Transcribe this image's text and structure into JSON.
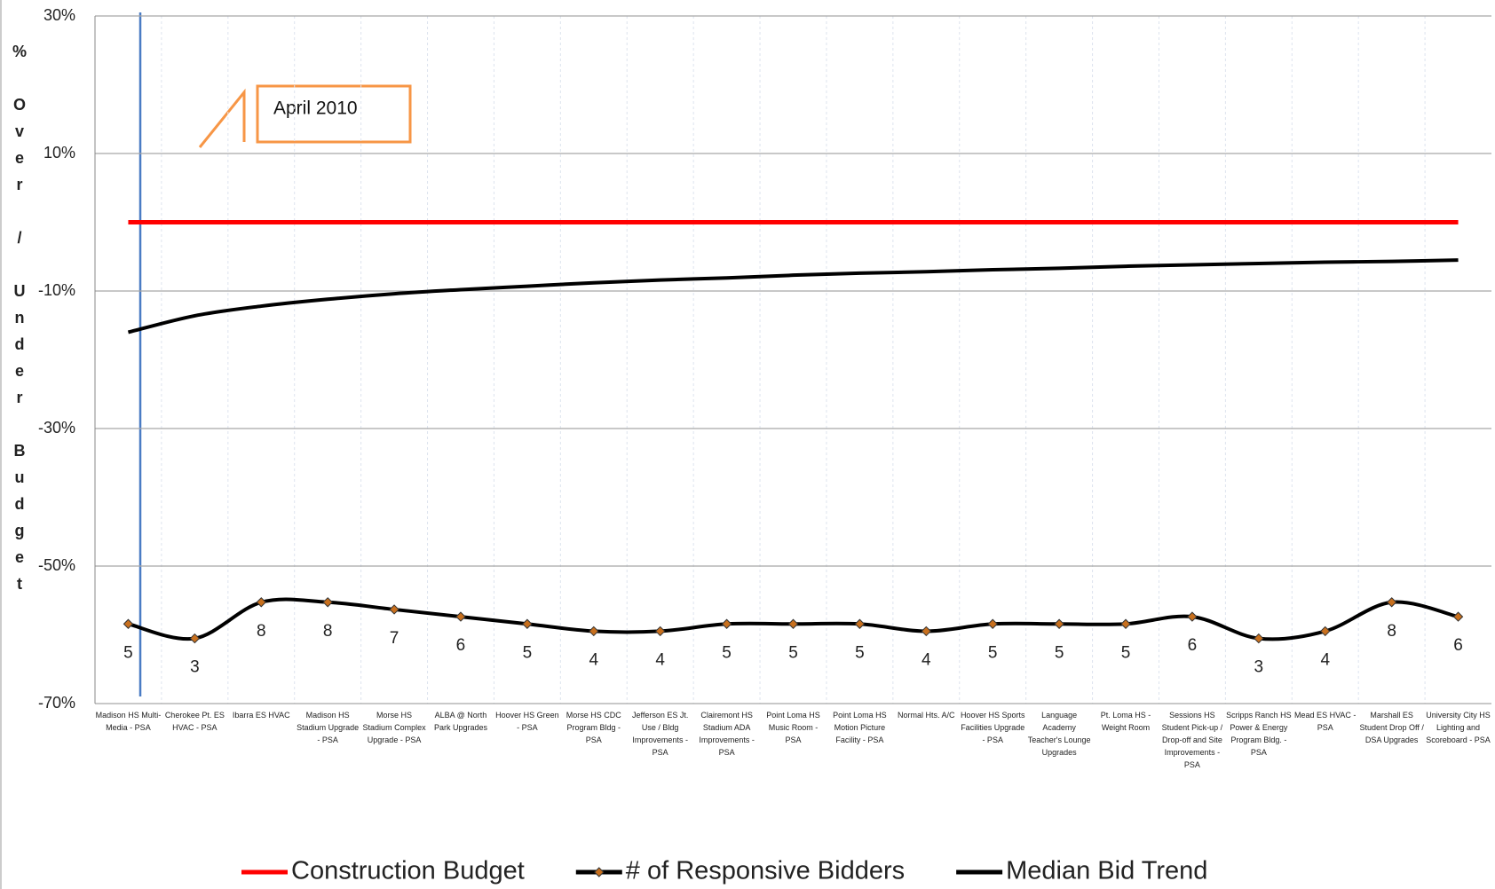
{
  "chart_data": {
    "type": "line",
    "y_label": "% Over / Under Budget",
    "annotation": "April 2010",
    "categories": [
      "Madison HS Multi-Media - PSA",
      "Cherokee Pt. ES HVAC - PSA",
      "Ibarra ES HVAC",
      "Madison HS Stadium Upgrade - PSA",
      "Morse HS Stadium Complex Upgrade - PSA",
      "ALBA @ North Park Upgrades",
      "Hoover HS Green - PSA",
      "Morse HS CDC Program Bldg - PSA",
      "Jefferson ES Jt. Use / Bldg Improvements - PSA",
      "Clairemont HS Stadium ADA Improvements - PSA",
      "Point Loma HS Music Room - PSA",
      "Point Loma HS Motion Picture Facility - PSA",
      "Normal Hts. A/C",
      "Hoover HS Sports Facilities Upgrade - PSA",
      "Language Academy Teacher's Lounge Upgrades",
      "Pt. Loma HS - Weight Room",
      "Sessions HS Student Pick-up / Drop-off and Site Improvements -PSA",
      "Scripps Ranch HS Power & Energy Program Bldg. -PSA",
      "Mead ES HVAC - PSA",
      "Marshall ES Student Drop Off / DSA Upgrades",
      "University City HS Lighting and Scoreboard - PSA"
    ],
    "series": [
      {
        "name": "Construction Budget",
        "color": "#ff0000",
        "values": [
          0,
          0,
          0,
          0,
          0,
          0,
          0,
          0,
          0,
          0,
          0,
          0,
          0,
          0,
          0,
          0,
          0,
          0,
          0,
          0,
          0
        ]
      },
      {
        "name": "# of Responsive Bidders",
        "color": "#000000",
        "marker_color": "#c8701e",
        "axis": "y2",
        "values": [
          5,
          3,
          8,
          8,
          7,
          6,
          5,
          4,
          4,
          5,
          5,
          5,
          4,
          5,
          5,
          5,
          6,
          3,
          4,
          8,
          6
        ]
      },
      {
        "name": "Median Bid Trend",
        "color": "#000000",
        "values": [
          -16,
          -13.6,
          -12.2,
          -11.2,
          -10.4,
          -9.8,
          -9.3,
          -8.8,
          -8.4,
          -8.1,
          -7.7,
          -7.4,
          -7.2,
          -6.9,
          -6.7,
          -6.4,
          -6.2,
          -6.0,
          -5.8,
          -5.7,
          -5.5
        ]
      }
    ],
    "ylim": [
      -70,
      30
    ],
    "yticks": [
      {
        "value": -70,
        "label": "-70%"
      },
      {
        "value": -50,
        "label": "-50%"
      },
      {
        "value": -30,
        "label": "-30%"
      },
      {
        "value": -10,
        "label": "-10%"
      },
      {
        "value": 10,
        "label": "10%"
      },
      {
        "value": 30,
        "label": "30%"
      }
    ],
    "y2lim": [
      -6,
      89
    ],
    "grid": true,
    "legend": "bottom"
  }
}
